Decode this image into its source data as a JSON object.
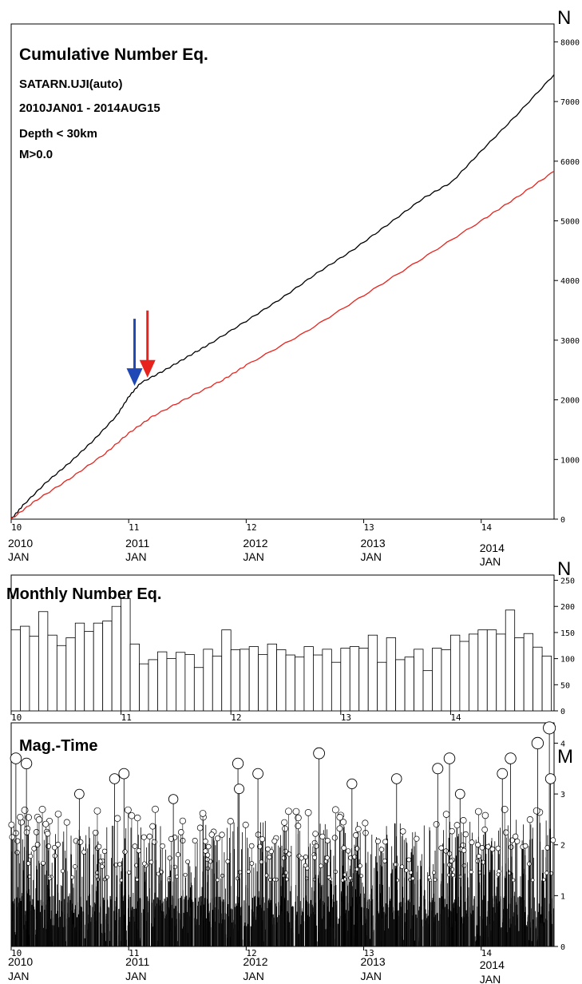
{
  "chart_data": [
    {
      "type": "line",
      "title": "Cumulative Number Eq.",
      "info_lines": [
        "SATARN.UJI(auto)",
        "2010JAN01 - 2014AUG15",
        "Depth < 30km",
        "M>0.0"
      ],
      "ylabel": "N",
      "ylim": [
        0,
        8300
      ],
      "yticks": [
        0,
        1000,
        2000,
        3000,
        4000,
        5000,
        6000,
        7000,
        8000
      ],
      "x_range": [
        2010.0,
        2014.62
      ],
      "x_ticks": [
        {
          "short": "10",
          "year": "2010",
          "month": "JAN"
        },
        {
          "short": "11",
          "year": "2011",
          "month": "JAN"
        },
        {
          "short": "12",
          "year": "2012",
          "month": "JAN"
        },
        {
          "short": "13",
          "year": "2013",
          "month": "JAN"
        },
        {
          "short": "14",
          "year": "2014",
          "month": "JAN"
        }
      ],
      "series": [
        {
          "color": "#000000",
          "x": [
            2010.0,
            2010.1,
            2010.3,
            2010.5,
            2010.7,
            2010.9,
            2011.0,
            2011.1,
            2011.3,
            2011.5,
            2011.7,
            2012.0,
            2012.3,
            2012.6,
            2012.9,
            2013.2,
            2013.5,
            2013.75,
            2014.0,
            2014.3,
            2014.62
          ],
          "values": [
            0,
            230,
            620,
            950,
            1320,
            1740,
            2050,
            2280,
            2490,
            2720,
            2950,
            3320,
            3700,
            4120,
            4500,
            4930,
            5370,
            5650,
            6170,
            6770,
            7450
          ]
        },
        {
          "color": "#e8231d",
          "x": [
            2010.0,
            2010.2,
            2010.5,
            2010.8,
            2011.0,
            2011.2,
            2011.5,
            2011.8,
            2012.0,
            2012.5,
            2013.0,
            2013.5,
            2014.0,
            2014.3,
            2014.62
          ],
          "values": [
            0,
            300,
            680,
            1100,
            1440,
            1720,
            2030,
            2330,
            2580,
            3130,
            3750,
            4370,
            5000,
            5390,
            5830
          ]
        }
      ],
      "annotations": [
        {
          "type": "arrow",
          "color": "#1f47b5",
          "x": 2011.05,
          "y": 2180
        },
        {
          "type": "arrow",
          "color": "#e8231d",
          "x": 2011.16,
          "y": 2320
        }
      ]
    },
    {
      "type": "bar",
      "title": "Monthly Number Eq.",
      "ylabel": "N",
      "ylim": [
        0,
        260
      ],
      "yticks": [
        0,
        50,
        100,
        150,
        200,
        250
      ],
      "x_ticks": [
        "10",
        "11",
        "12",
        "13",
        "14"
      ],
      "values": [
        155,
        162,
        143,
        190,
        145,
        125,
        140,
        168,
        152,
        168,
        172,
        200,
        215,
        128,
        90,
        98,
        113,
        100,
        112,
        108,
        83,
        118,
        105,
        155,
        117,
        118,
        123,
        108,
        128,
        117,
        107,
        103,
        123,
        107,
        118,
        93,
        120,
        123,
        120,
        145,
        93,
        140,
        98,
        103,
        118,
        77,
        120,
        117,
        145,
        133,
        147,
        155,
        155,
        147,
        193,
        140,
        148,
        122,
        105
      ]
    },
    {
      "type": "scatter",
      "title": "Mag.-Time",
      "ylabel": "M",
      "ylim": [
        0,
        4.4
      ],
      "yticks": [
        0,
        1,
        2,
        3,
        4
      ],
      "x_range": [
        2010.0,
        2014.62
      ],
      "x_ticks": [
        {
          "short": "10",
          "year": "2010",
          "month": "JAN"
        },
        {
          "short": "11",
          "year": "2011",
          "month": "JAN"
        },
        {
          "short": "12",
          "year": "2012",
          "month": "JAN"
        },
        {
          "short": "13",
          "year": "2013",
          "month": "JAN"
        },
        {
          "short": "14",
          "year": "2014",
          "month": "JAN"
        }
      ],
      "large_events": [
        {
          "x": 2010.04,
          "m": 3.7
        },
        {
          "x": 2010.13,
          "m": 3.6
        },
        {
          "x": 2010.58,
          "m": 3.0
        },
        {
          "x": 2010.88,
          "m": 3.3
        },
        {
          "x": 2010.96,
          "m": 3.4
        },
        {
          "x": 2011.38,
          "m": 2.9
        },
        {
          "x": 2011.93,
          "m": 3.6
        },
        {
          "x": 2011.94,
          "m": 3.1
        },
        {
          "x": 2012.1,
          "m": 3.4
        },
        {
          "x": 2012.62,
          "m": 3.8
        },
        {
          "x": 2012.9,
          "m": 3.2
        },
        {
          "x": 2013.28,
          "m": 3.3
        },
        {
          "x": 2013.63,
          "m": 3.5
        },
        {
          "x": 2013.73,
          "m": 3.7
        },
        {
          "x": 2013.82,
          "m": 3.0
        },
        {
          "x": 2014.18,
          "m": 3.4
        },
        {
          "x": 2014.25,
          "m": 3.7
        },
        {
          "x": 2014.48,
          "m": 4.0
        },
        {
          "x": 2014.58,
          "m": 4.3
        },
        {
          "x": 2014.59,
          "m": 3.3
        }
      ]
    }
  ]
}
